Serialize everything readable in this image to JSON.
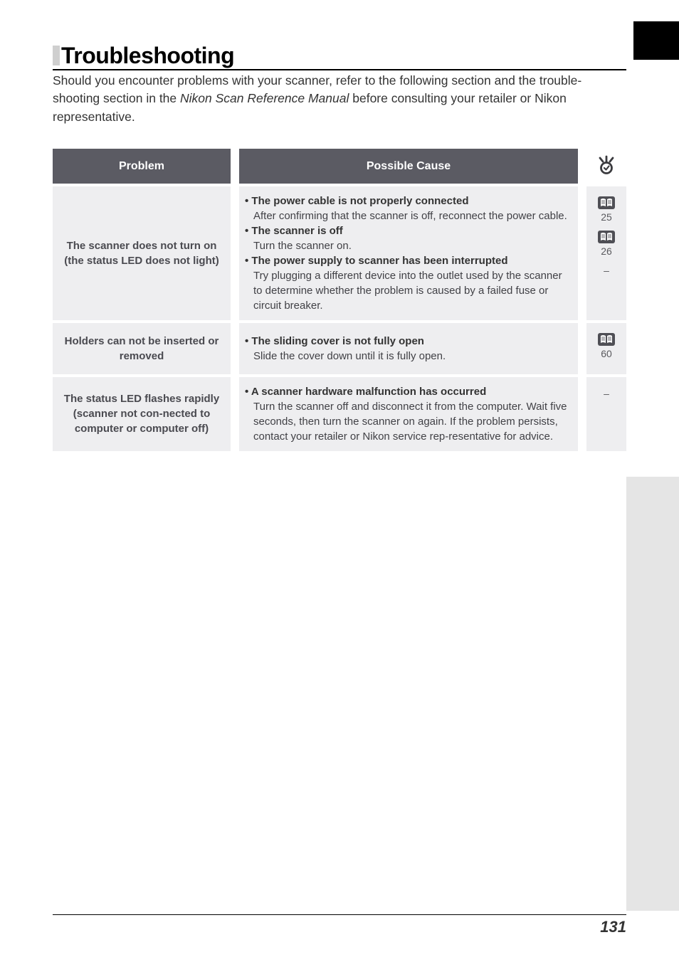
{
  "title": "Troubleshooting",
  "intro_pre": "Should you encounter problems with your scanner, refer to the following section and the trouble-shooting section in the ",
  "intro_em": "Nikon Scan Reference Manual",
  "intro_post": " before consulting your retailer or Nikon representative.",
  "headers": {
    "problem": "Problem",
    "cause": "Possible Cause"
  },
  "rows": [
    {
      "problem": "The scanner does not turn on (the status LED does not light)",
      "causes": [
        {
          "head": "• The power cable is not properly connected",
          "body": "After confirming that the scanner is off, reconnect the power cable."
        },
        {
          "head": "• The scanner is off",
          "body": "Turn the scanner on."
        },
        {
          "head": "• The power supply to scanner has been interrupted",
          "body": "Try plugging a different device into the outlet used by the scanner to determine whether the problem is caused by a failed fuse or circuit breaker."
        }
      ],
      "refs": [
        {
          "icon": true,
          "pg": "25"
        },
        {
          "icon": true,
          "pg": "26"
        },
        {
          "icon": false,
          "pg": "–"
        }
      ]
    },
    {
      "problem": "Holders can not be inserted or removed",
      "causes": [
        {
          "head": "• The sliding cover is not fully open",
          "body": "Slide the cover down until it is fully open."
        }
      ],
      "refs": [
        {
          "icon": true,
          "pg": "60"
        }
      ]
    },
    {
      "problem": "The status LED flashes rapidly (scanner not con-nected to computer or computer off)",
      "causes": [
        {
          "head": "• A scanner hardware malfunction has occurred",
          "body": "Turn the scanner off and disconnect it from the computer. Wait five seconds, then turn the scanner on again.  If the problem persists, contact your retailer or Nikon service rep-resentative for advice."
        }
      ],
      "refs": [
        {
          "icon": false,
          "pg": "–"
        }
      ]
    }
  ],
  "page_number": "131",
  "colors": {
    "header_bg": "#5b5b63",
    "row_bg": "#eeeef0",
    "icon_bg": "#4f4f55"
  }
}
